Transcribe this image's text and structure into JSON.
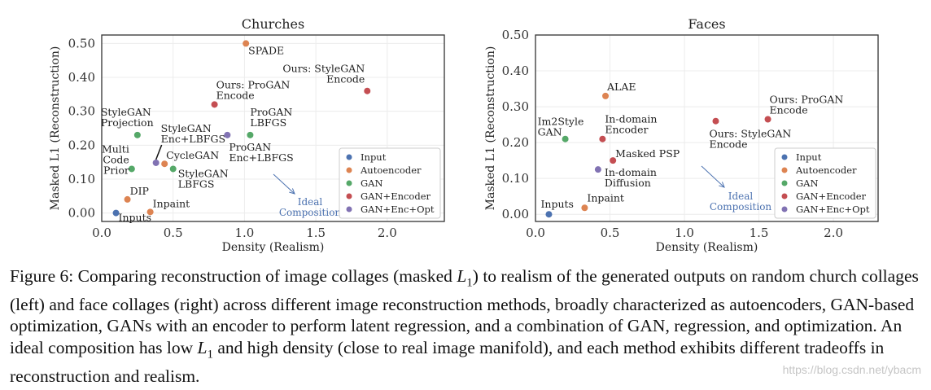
{
  "colors": {
    "Input": "#4c72b0",
    "Autoencoder": "#dd8452",
    "GAN": "#55a868",
    "GAN+Encoder": "#c44e52",
    "GAN+Enc+Opt": "#8172b3",
    "ideal": "#4c72b0"
  },
  "legend_entries": [
    "Input",
    "Autoencoder",
    "GAN",
    "GAN+Encoder",
    "GAN+Enc+Opt"
  ],
  "chart_data": [
    {
      "type": "scatter",
      "title": "Churches",
      "xlabel": "Density (Realism)",
      "ylabel": "Masked L1 (Reconstruction)",
      "xlim": [
        0.0,
        2.4
      ],
      "ylim": [
        -0.025,
        0.525
      ],
      "xticks": [
        0.0,
        0.5,
        1.0,
        1.5,
        2.0
      ],
      "xtick_labels": [
        "0.0",
        "0.5",
        "1.0",
        "1.5",
        "2.0"
      ],
      "yticks": [
        0.0,
        0.1,
        0.2,
        0.3,
        0.4,
        0.5
      ],
      "ytick_labels": [
        "0.00",
        "0.10",
        "0.20",
        "0.30",
        "0.40",
        "0.50"
      ],
      "grid": true,
      "legend_position": "lower-right",
      "ideal_label": [
        "Ideal",
        "Composition"
      ],
      "points": [
        {
          "label": [
            "Inputs"
          ],
          "category": "Input",
          "x": 0.1,
          "y": 0.0
        },
        {
          "label": [
            "DIP"
          ],
          "category": "Autoencoder",
          "x": 0.18,
          "y": 0.04
        },
        {
          "label": [
            "Inpaint"
          ],
          "category": "Autoencoder",
          "x": 0.34,
          "y": 0.003
        },
        {
          "label": [
            "CycleGAN"
          ],
          "category": "Autoencoder",
          "x": 0.44,
          "y": 0.145
        },
        {
          "label": [
            "SPADE"
          ],
          "category": "Autoencoder",
          "x": 1.01,
          "y": 0.5
        },
        {
          "label": [
            "Multi",
            "Code",
            "Prior"
          ],
          "category": "GAN",
          "x": 0.21,
          "y": 0.13
        },
        {
          "label": [
            "StyleGAN",
            "Projection"
          ],
          "category": "GAN",
          "x": 0.25,
          "y": 0.23
        },
        {
          "label": [
            "StyleGAN",
            "LBFGS"
          ],
          "category": "GAN",
          "x": 0.5,
          "y": 0.13
        },
        {
          "label": [
            "ProGAN",
            "LBFGS"
          ],
          "category": "GAN",
          "x": 1.04,
          "y": 0.23
        },
        {
          "label": [
            "Ours: ProGAN",
            "Encode"
          ],
          "category": "GAN+Encoder",
          "x": 0.79,
          "y": 0.32
        },
        {
          "label": [
            "Ours: StyleGAN",
            "Encode"
          ],
          "category": "GAN+Encoder",
          "x": 1.86,
          "y": 0.36
        },
        {
          "label": [
            "StyleGAN",
            "Enc+LBFGS"
          ],
          "category": "GAN+Enc+Opt",
          "x": 0.38,
          "y": 0.148
        },
        {
          "label": [
            "ProGAN",
            "Enc+LBFGS"
          ],
          "category": "GAN+Enc+Opt",
          "x": 0.88,
          "y": 0.23
        }
      ]
    },
    {
      "type": "scatter",
      "title": "Faces",
      "xlabel": "Density (Realism)",
      "ylabel": "Masked L1 (Reconstruction)",
      "xlim": [
        0.0,
        2.3
      ],
      "ylim": [
        -0.02,
        0.5
      ],
      "xticks": [
        0.0,
        0.5,
        1.0,
        1.5,
        2.0
      ],
      "xtick_labels": [
        "0.0",
        "0.5",
        "1.0",
        "1.5",
        "2.0"
      ],
      "yticks": [
        0.0,
        0.1,
        0.2,
        0.3,
        0.4,
        0.5
      ],
      "ytick_labels": [
        "0.00",
        "0.10",
        "0.20",
        "0.30",
        "0.40",
        "0.50"
      ],
      "grid": true,
      "legend_position": "lower-right",
      "ideal_label": [
        "Ideal",
        "Composition"
      ],
      "points": [
        {
          "label": [
            "Inputs"
          ],
          "category": "Input",
          "x": 0.09,
          "y": 0.0
        },
        {
          "label": [
            "Inpaint"
          ],
          "category": "Autoencoder",
          "x": 0.33,
          "y": 0.018
        },
        {
          "label": [
            "ALAE"
          ],
          "category": "Autoencoder",
          "x": 0.47,
          "y": 0.33
        },
        {
          "label": [
            "Im2Style",
            "GAN"
          ],
          "category": "GAN",
          "x": 0.2,
          "y": 0.21
        },
        {
          "label": [
            "In-domain",
            "Encoder"
          ],
          "category": "GAN+Encoder",
          "x": 0.45,
          "y": 0.21
        },
        {
          "label": [
            "Masked PSP"
          ],
          "category": "GAN+Encoder",
          "x": 0.52,
          "y": 0.15
        },
        {
          "label": [
            "Ours: StyleGAN",
            "Encode"
          ],
          "category": "GAN+Encoder",
          "x": 1.21,
          "y": 0.26
        },
        {
          "label": [
            "Ours: ProGAN",
            "Encode"
          ],
          "category": "GAN+Encoder",
          "x": 1.56,
          "y": 0.265
        },
        {
          "label": [
            "In-domain",
            "Diffusion"
          ],
          "category": "GAN+Enc+Opt",
          "x": 0.42,
          "y": 0.125
        }
      ]
    }
  ],
  "caption": {
    "lead": "Figure 6:",
    "part1": "Comparing reconstruction of image collages (masked",
    "math_base": "L",
    "math_sub": "1",
    "part2": ") to realism of the generated outputs on random church collages (left) and face collages (right) across different image reconstruction methods, broadly characterized as autoencoders, GAN-based optimization, GANs with an encoder to perform latent regression, and a combination of GAN, regression, and optimization. An ideal composition has low",
    "part3": "and high density (close to real image manifold), and each method exhibits different tradeoffs in reconstruction and realism."
  },
  "watermark": "https://blog.csdn.net/ybacm"
}
